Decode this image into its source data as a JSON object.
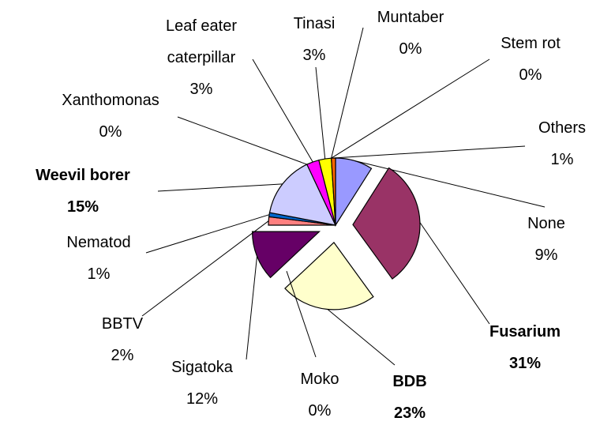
{
  "chart_data": {
    "type": "pie",
    "categories": [
      "None",
      "Fusarium",
      "BDB",
      "Moko",
      "Sigatoka",
      "BBTV",
      "Nematod",
      "Weevil borer",
      "Xanthomonas",
      "Leaf eater caterpillar",
      "Tinasi",
      "Muntaber",
      "Stem rot",
      "Others"
    ],
    "values": [
      9,
      31,
      23,
      0,
      12,
      2,
      1,
      15,
      0,
      3,
      3,
      0,
      0,
      1
    ],
    "value_labels": [
      "9%",
      "31%",
      "23%",
      "0%",
      "12%",
      "2%",
      "1%",
      "15%",
      "0%",
      "3%",
      "3%",
      "0%",
      "0%",
      "1%"
    ],
    "colors": [
      "#9999ff",
      "#993366",
      "#ffffcc",
      "#ccffff",
      "#660066",
      "#ff8080",
      "#0066cc",
      "#ccccff",
      "#000080",
      "#ff00ff",
      "#ffff00",
      "#00ffff",
      "#800000",
      "#ff6600"
    ],
    "explode": [
      false,
      true,
      true,
      false,
      true,
      false,
      false,
      false,
      false,
      false,
      false,
      false,
      false,
      false
    ],
    "label_bold": [
      false,
      true,
      true,
      false,
      false,
      false,
      false,
      true,
      false,
      false,
      false,
      false,
      false,
      false
    ]
  }
}
